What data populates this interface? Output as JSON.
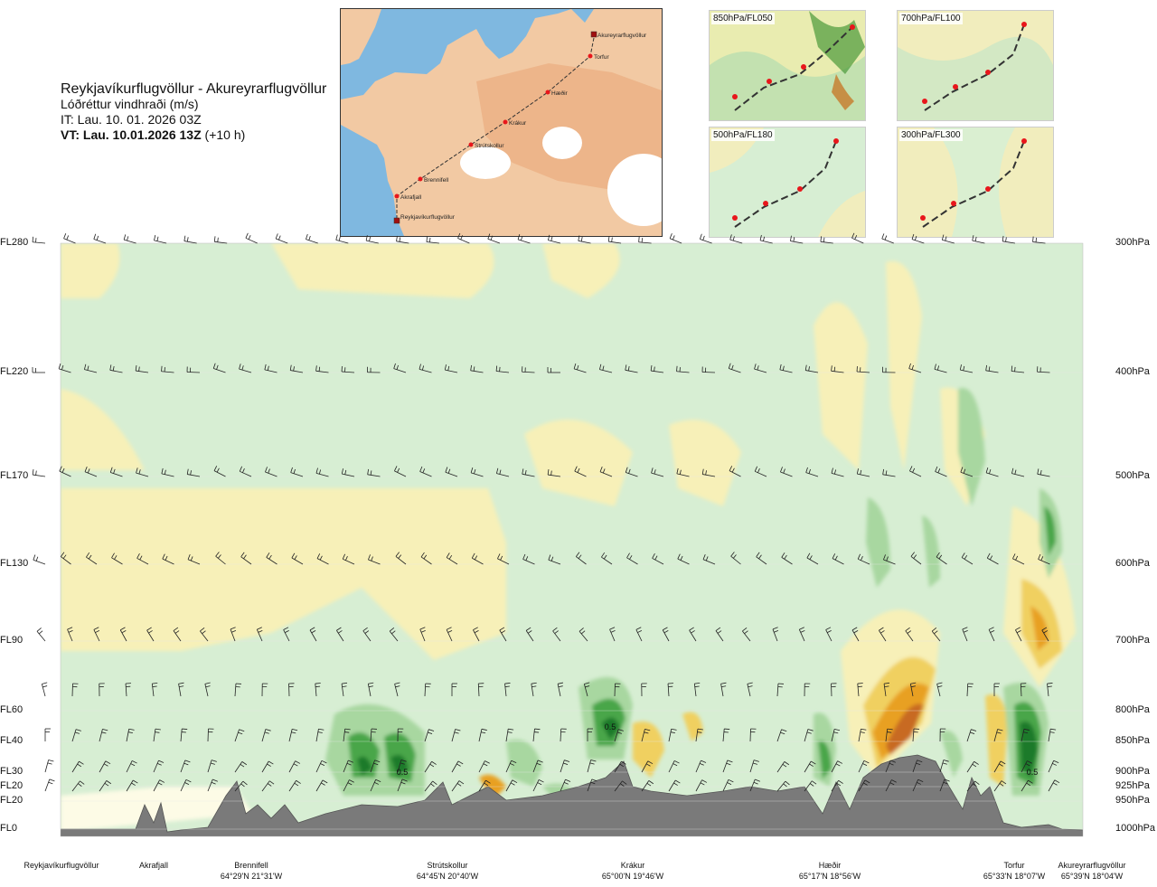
{
  "header": {
    "route": "Reykjavíkurflugvöllur - Akureyrarflugvöllur",
    "variable": "Lóðréttur vindhraði (m/s)",
    "issue_time": "IT: Lau. 10. 01. 2026 03Z",
    "valid_time": "VT: Lau. 10.01.2026 13Z",
    "lead_time": "(+10 h)"
  },
  "map": {
    "points": [
      {
        "name": "Akureyrarflugvöllur",
        "type": "airport"
      },
      {
        "name": "Torfur",
        "type": "waypoint"
      },
      {
        "name": "Hæðir",
        "type": "waypoint"
      },
      {
        "name": "Krákur",
        "type": "waypoint"
      },
      {
        "name": "Strútskollur",
        "type": "waypoint"
      },
      {
        "name": "Brennifell",
        "type": "waypoint"
      },
      {
        "name": "Akrafjall",
        "type": "waypoint"
      },
      {
        "name": "Reykjavíkurflugvöllur",
        "type": "airport"
      }
    ],
    "colors": {
      "sea": "#7fb8e0",
      "land": "#f2c9a3",
      "ice": "#ffffff",
      "route": "#333333",
      "marker": "#e8161b"
    }
  },
  "thumbnails": [
    {
      "label": "850hPa/FL050"
    },
    {
      "label": "700hPa/FL100"
    },
    {
      "label": "500hPa/FL180"
    },
    {
      "label": "300hPa/FL300"
    }
  ],
  "levels": [
    {
      "fl": "FL280",
      "hpa": "300hPa"
    },
    {
      "fl": "FL220",
      "hpa": "400hPa"
    },
    {
      "fl": "FL170",
      "hpa": "500hPa"
    },
    {
      "fl": "FL130",
      "hpa": "600hPa"
    },
    {
      "fl": "FL90",
      "hpa": "700hPa"
    },
    {
      "fl": "FL60",
      "hpa": "800hPa"
    },
    {
      "fl": "FL40",
      "hpa": "850hPa"
    },
    {
      "fl": "FL30",
      "hpa": "900hPa"
    },
    {
      "fl": "FL20",
      "hpa": "925hPa"
    },
    {
      "fl": "FL20",
      "hpa": "950hPa"
    },
    {
      "fl": "FL0",
      "hpa": "1000hPa"
    }
  ],
  "waypoints": [
    {
      "name": "Reykjavíkurflugvöllur",
      "coord": ""
    },
    {
      "name": "Akrafjall",
      "coord": ""
    },
    {
      "name": "Brennifell",
      "coord": "64°29'N 21°31'W"
    },
    {
      "name": "Strútskollur",
      "coord": "64°45'N 20°40'W"
    },
    {
      "name": "Krákur",
      "coord": "65°00'N 19°46'W"
    },
    {
      "name": "Hæðir",
      "coord": "65°17'N 18°56'W"
    },
    {
      "name": "Torfur",
      "coord": "65°33'N 18°07'W"
    },
    {
      "name": "Akureyrarflugvöllur",
      "coord": "65°39'N 18°04'W"
    }
  ],
  "chart_data": {
    "type": "heatmap",
    "title": "Reykjavíkurflugvöllur - Akureyrarflugvöllur",
    "variable": "Lóðréttur vindhraði (m/s)",
    "x_categories": [
      "Reykjavíkurflugvöllur",
      "Akrafjall",
      "Brennifell",
      "Strútskollur",
      "Krákur",
      "Hæðir",
      "Torfur",
      "Akureyrarflugvöllur"
    ],
    "y_levels_hpa": [
      300,
      400,
      500,
      600,
      700,
      800,
      850,
      900,
      925,
      950,
      1000
    ],
    "contour_labels": [
      "0.5",
      "0.5",
      "0.5"
    ],
    "colors": {
      "updraft_weak": "#d7eed3",
      "updraft_mod": "#a8d7a0",
      "updraft_strong": "#4aa64a",
      "updraft_max": "#1d7a2a",
      "downdraft_weak": "#f7f0b8",
      "downdraft_mod": "#f0d060",
      "downdraft_strong": "#e8a020",
      "downdraft_max": "#c86a20",
      "neutral": "#fdfbe6",
      "terrain": "#7a7a7a"
    },
    "grid": true
  }
}
